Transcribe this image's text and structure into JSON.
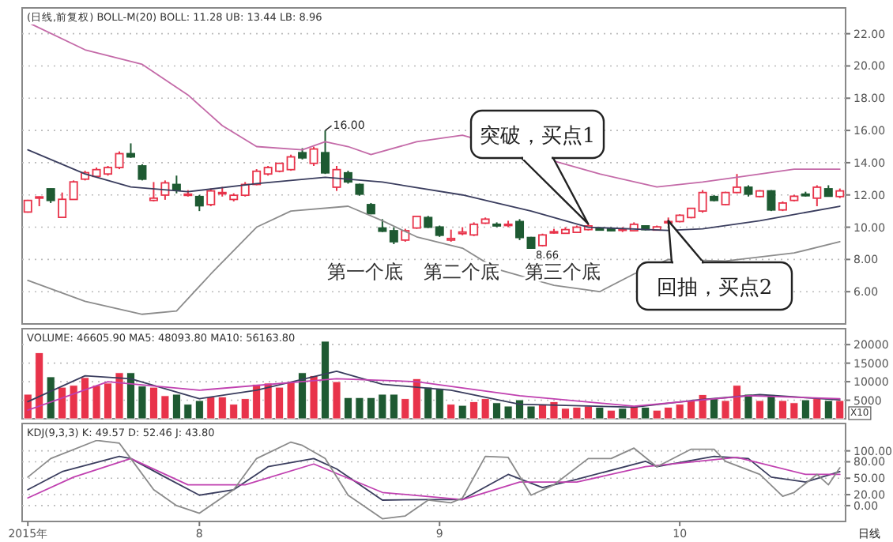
{
  "chart_data": [
    {
      "type": "candlestick",
      "title": "(日线,前复权) BOLL-M(20) BOLL: 11.28 UB: 13.44 LB: 8.96",
      "categories": [
        null,
        null,
        null,
        null,
        null,
        null,
        null,
        null,
        null,
        null,
        null,
        null,
        null,
        null,
        null,
        null,
        null,
        null,
        null,
        null,
        null,
        null,
        null,
        null,
        null,
        null,
        null,
        null,
        null,
        null,
        null,
        null,
        null,
        null,
        null,
        null,
        null,
        null,
        null,
        null,
        null,
        null,
        null,
        null,
        null,
        null,
        null,
        null,
        null,
        null,
        null,
        null,
        null,
        null,
        null,
        null,
        null,
        null,
        null,
        null,
        null,
        null,
        null,
        null,
        null,
        null,
        null,
        null,
        null,
        null,
        null,
        null
      ],
      "ohlc": [
        [
          10.94,
          11.7,
          10.9,
          11.66
        ],
        [
          11.88,
          11.9,
          11.3,
          11.88
        ],
        [
          12.38,
          12.4,
          11.5,
          11.66
        ],
        [
          10.61,
          12.15,
          10.6,
          11.73
        ],
        [
          11.72,
          12.9,
          11.7,
          12.81
        ],
        [
          12.98,
          13.5,
          12.9,
          13.38
        ],
        [
          13.15,
          13.7,
          13.1,
          13.57
        ],
        [
          13.3,
          13.8,
          13.2,
          13.7
        ],
        [
          13.7,
          14.7,
          13.6,
          14.56
        ],
        [
          14.56,
          15.2,
          14.3,
          14.36
        ],
        [
          13.8,
          13.9,
          12.9,
          12.98
        ],
        [
          11.66,
          12.8,
          11.6,
          11.8
        ],
        [
          11.99,
          12.9,
          11.7,
          12.75
        ],
        [
          12.65,
          13.2,
          12.1,
          12.32
        ],
        [
          12.05,
          12.3,
          11.9,
          12.05
        ],
        [
          11.9,
          12.0,
          11.0,
          11.33
        ],
        [
          11.4,
          12.4,
          11.3,
          12.25
        ],
        [
          12.1,
          12.5,
          11.9,
          12.15
        ],
        [
          11.72,
          12.1,
          11.6,
          11.98
        ],
        [
          11.98,
          12.8,
          11.9,
          12.65
        ],
        [
          12.65,
          13.6,
          12.6,
          13.47
        ],
        [
          13.3,
          13.8,
          13.2,
          13.7
        ],
        [
          13.47,
          14.0,
          13.4,
          13.96
        ],
        [
          13.57,
          14.5,
          13.5,
          14.36
        ],
        [
          14.62,
          14.9,
          14.2,
          14.3
        ],
        [
          13.96,
          15.0,
          13.8,
          14.85
        ],
        [
          14.62,
          16.0,
          13.3,
          13.37
        ],
        [
          12.48,
          13.8,
          12.25,
          13.57
        ],
        [
          13.37,
          13.5,
          12.7,
          12.81
        ],
        [
          12.65,
          12.7,
          11.95,
          12.05
        ],
        [
          11.4,
          11.5,
          10.8,
          10.84
        ],
        [
          9.95,
          10.5,
          9.7,
          9.75
        ],
        [
          9.78,
          10.0,
          8.95,
          9.1
        ],
        [
          9.2,
          9.9,
          9.1,
          9.78
        ],
        [
          9.95,
          10.7,
          9.9,
          10.67
        ],
        [
          10.6,
          10.7,
          9.95,
          10.0
        ],
        [
          10.01,
          10.1,
          9.4,
          9.5
        ],
        [
          9.2,
          9.85,
          9.1,
          9.3
        ],
        [
          9.6,
          10.0,
          9.5,
          9.7
        ],
        [
          9.52,
          10.3,
          9.45,
          10.18
        ],
        [
          10.25,
          10.6,
          10.2,
          10.5
        ],
        [
          10.18,
          10.3,
          10.0,
          10.08
        ],
        [
          10.18,
          10.4,
          10.0,
          10.18
        ],
        [
          10.35,
          10.5,
          9.2,
          9.36
        ],
        [
          9.36,
          9.4,
          8.66,
          8.7
        ],
        [
          8.86,
          9.6,
          8.8,
          9.52
        ],
        [
          9.68,
          9.9,
          9.6,
          9.72
        ],
        [
          9.62,
          10.0,
          9.6,
          9.85
        ],
        [
          9.68,
          10.1,
          9.65,
          10.0
        ],
        [
          9.85,
          10.2,
          9.8,
          10.08
        ],
        [
          9.95,
          10.0,
          9.8,
          9.82
        ],
        [
          9.9,
          10.0,
          9.75,
          9.78
        ],
        [
          9.85,
          10.0,
          9.7,
          9.88
        ],
        [
          9.78,
          10.3,
          9.75,
          10.18
        ],
        [
          10.08,
          10.1,
          9.8,
          9.85
        ],
        [
          9.82,
          10.1,
          9.8,
          10.02
        ],
        [
          10.3,
          10.6,
          10.2,
          10.35
        ],
        [
          10.35,
          10.8,
          10.3,
          10.74
        ],
        [
          10.6,
          11.2,
          10.55,
          11.17
        ],
        [
          11.0,
          12.3,
          10.9,
          12.15
        ],
        [
          11.9,
          12.0,
          11.6,
          11.66
        ],
        [
          11.4,
          12.2,
          11.35,
          12.15
        ],
        [
          12.15,
          13.3,
          12.1,
          12.48
        ],
        [
          12.48,
          12.6,
          11.9,
          12.05
        ],
        [
          11.9,
          12.3,
          11.85,
          12.25
        ],
        [
          12.25,
          12.3,
          11.0,
          11.07
        ],
        [
          11.07,
          11.6,
          11.0,
          11.5
        ],
        [
          11.66,
          12.0,
          11.6,
          11.92
        ],
        [
          12.05,
          12.2,
          11.9,
          11.95
        ],
        [
          11.8,
          12.6,
          11.3,
          12.48
        ],
        [
          12.38,
          12.6,
          11.9,
          11.92
        ],
        [
          11.9,
          12.4,
          11.8,
          12.25
        ]
      ],
      "series": [
        {
          "type": "line",
          "color": "#c46aa8",
          "values": [
            22.7,
            null,
            null,
            null,
            null,
            21.0,
            null,
            null,
            null,
            null,
            20.1,
            null,
            null,
            null,
            18.2,
            null,
            null,
            16.3,
            null,
            null,
            15.0,
            null,
            null,
            null,
            14.8,
            null,
            15.3,
            null,
            15.0,
            null,
            14.5,
            null,
            null,
            null,
            15.3,
            null,
            null,
            null,
            15.7,
            null,
            null,
            null,
            null,
            null,
            null,
            null,
            null,
            null,
            null,
            null,
            13.3,
            null,
            null,
            null,
            null,
            12.5,
            null,
            null,
            null,
            12.8,
            null,
            null,
            13.1,
            null,
            null,
            null,
            null,
            13.6,
            null,
            null,
            null,
            13.6
          ]
        },
        {
          "type": "line",
          "color": "#3a3d5e",
          "values": [
            14.8,
            null,
            null,
            null,
            null,
            13.3,
            null,
            null,
            null,
            12.5,
            null,
            null,
            null,
            null,
            12.2,
            null,
            null,
            null,
            null,
            null,
            12.7,
            null,
            null,
            null,
            null,
            null,
            13.1,
            null,
            null,
            null,
            null,
            12.8,
            null,
            null,
            null,
            null,
            null,
            null,
            12.0,
            null,
            null,
            null,
            null,
            null,
            11.0,
            null,
            null,
            null,
            null,
            10.0,
            null,
            null,
            null,
            null,
            null,
            null,
            9.8,
            null,
            null,
            9.9,
            null,
            null,
            null,
            null,
            10.4,
            null,
            null,
            null,
            null,
            null,
            null,
            11.3
          ]
        },
        {
          "type": "line",
          "color": "#8c8c8c",
          "values": [
            6.7,
            null,
            null,
            null,
            null,
            5.4,
            null,
            null,
            null,
            null,
            4.6,
            null,
            null,
            4.8,
            null,
            null,
            7.1,
            null,
            null,
            null,
            10.0,
            null,
            null,
            11.0,
            null,
            null,
            null,
            null,
            11.3,
            null,
            null,
            10.4,
            null,
            null,
            9.4,
            null,
            null,
            null,
            8.7,
            null,
            null,
            7.4,
            null,
            null,
            null,
            null,
            6.4,
            null,
            null,
            null,
            6.0,
            null,
            null,
            7.1,
            null,
            null,
            8.0,
            null,
            null,
            null,
            null,
            7.9,
            null,
            null,
            null,
            null,
            null,
            8.4,
            null,
            null,
            null,
            9.1
          ]
        }
      ],
      "ylim": [
        4,
        23.6
      ],
      "yticks": [
        {
          "value": 6,
          "label": "6.00"
        },
        {
          "value": 8,
          "label": "8.00"
        },
        {
          "value": 10,
          "label": "10.00"
        },
        {
          "value": 12,
          "label": "12.00"
        },
        {
          "value": 14,
          "label": "14.00"
        },
        {
          "value": 16,
          "label": "16.00"
        },
        {
          "value": 18,
          "label": "18.00"
        },
        {
          "value": 20,
          "label": "20.00"
        },
        {
          "value": 22,
          "label": "22.00"
        }
      ],
      "grid": "y",
      "tick_labels": "y",
      "annotations": [
        "16.00",
        "8.66",
        "第一个底",
        "第二个底",
        "第三个底",
        "突破，买点1",
        "回抽，买点2"
      ]
    },
    {
      "type": "bar",
      "title": "VOLUME: 46605.90 MA5: 48093.80 MA10: 56163.80",
      "categories": [
        null,
        null,
        null,
        null,
        null,
        null,
        null,
        null,
        null,
        null,
        null,
        null,
        null,
        null,
        null,
        null,
        null,
        null,
        null,
        null,
        null,
        null,
        null,
        null,
        null,
        null,
        null,
        null,
        null,
        null,
        null,
        null,
        null,
        null,
        null,
        null,
        null,
        null,
        null,
        null,
        null,
        null,
        null,
        null,
        null,
        null,
        null,
        null,
        null,
        null,
        null,
        null,
        null,
        null,
        null,
        null,
        null,
        null,
        null,
        null,
        null,
        null,
        null,
        null,
        null,
        null,
        null,
        null,
        null,
        null,
        null,
        null
      ],
      "values": [
        6600,
        17800,
        11300,
        8500,
        9000,
        11100,
        9000,
        9600,
        12400,
        12400,
        8800,
        8500,
        6200,
        6600,
        3900,
        4900,
        5900,
        5900,
        3900,
        5400,
        9300,
        9600,
        8500,
        10000,
        12400,
        11600,
        20900,
        10000,
        5700,
        5700,
        5700,
        6600,
        6600,
        5400,
        10800,
        8500,
        8200,
        3900,
        3600,
        4600,
        5400,
        4300,
        3400,
        5100,
        3400,
        3900,
        4600,
        2800,
        3100,
        3400,
        3100,
        2300,
        2800,
        3400,
        3100,
        2300,
        3100,
        3900,
        4900,
        6500,
        5400,
        4900,
        9000,
        6600,
        4900,
        6500,
        4900,
        4300,
        5100,
        5400,
        4900,
        4900
      ],
      "colors": [
        "#e8334a",
        "#e8334a",
        "#1e5a32",
        "#e8334a",
        "#e8334a",
        "#e8334a",
        "#e8334a",
        "#e8334a",
        "#e8334a",
        "#1e5a32",
        "#1e5a32",
        "#e8334a",
        "#e8334a",
        "#1e5a32",
        "#1e5a32",
        "#1e5a32",
        "#e8334a",
        "#e8334a",
        "#e8334a",
        "#e8334a",
        "#e8334a",
        "#e8334a",
        "#e8334a",
        "#e8334a",
        "#1e5a32",
        "#e8334a",
        "#1e5a32",
        "#e8334a",
        "#1e5a32",
        "#1e5a32",
        "#1e5a32",
        "#1e5a32",
        "#1e5a32",
        "#e8334a",
        "#e8334a",
        "#1e5a32",
        "#1e5a32",
        "#e8334a",
        "#1e5a32",
        "#e8334a",
        "#e8334a",
        "#1e5a32",
        "#1e5a32",
        "#1e5a32",
        "#1e5a32",
        "#e8334a",
        "#e8334a",
        "#e8334a",
        "#e8334a",
        "#e8334a",
        "#1e5a32",
        "#e8334a",
        "#1e5a32",
        "#e8334a",
        "#1e5a32",
        "#e8334a",
        "#e8334a",
        "#e8334a",
        "#e8334a",
        "#e8334a",
        "#1e5a32",
        "#e8334a",
        "#e8334a",
        "#1e5a32",
        "#e8334a",
        "#1e5a32",
        "#e8334a",
        "#e8334a",
        "#1e5a32",
        "#e8334a",
        "#1e5a32",
        "#e8334a"
      ],
      "series": [
        {
          "type": "line",
          "color": "#3a3d5e",
          "values": [
            4600,
            null,
            null,
            null,
            null,
            11600,
            null,
            null,
            null,
            10800,
            null,
            null,
            null,
            null,
            null,
            5400,
            null,
            null,
            null,
            null,
            7700,
            null,
            null,
            null,
            null,
            null,
            null,
            12800,
            null,
            null,
            null,
            9300,
            null,
            null,
            null,
            null,
            null,
            7700,
            null,
            null,
            null,
            null,
            null,
            3900,
            null,
            null,
            null,
            null,
            null,
            null,
            null,
            null,
            null,
            3100,
            null,
            null,
            null,
            null,
            4900,
            null,
            null,
            null,
            null,
            null,
            6500,
            null,
            null,
            null,
            null,
            null,
            null,
            5100
          ]
        },
        {
          "type": "line",
          "color": "#c040b0",
          "values": [
            2300,
            null,
            null,
            null,
            null,
            null,
            null,
            10000,
            null,
            null,
            null,
            null,
            null,
            null,
            null,
            7700,
            null,
            null,
            null,
            null,
            null,
            null,
            null,
            null,
            null,
            null,
            null,
            10800,
            null,
            null,
            null,
            null,
            null,
            null,
            10000,
            null,
            null,
            null,
            null,
            null,
            null,
            null,
            null,
            6200,
            null,
            null,
            null,
            null,
            null,
            null,
            null,
            null,
            null,
            3400,
            null,
            null,
            null,
            null,
            null,
            null,
            null,
            null,
            null,
            6200,
            null,
            null,
            null,
            null,
            null,
            null,
            null,
            5400
          ]
        }
      ],
      "ylim": [
        0,
        24300
      ],
      "yticks": [
        5000,
        10000,
        15000,
        20000
      ],
      "grid": "y",
      "tick_labels": "y",
      "annotations": [
        "X10"
      ]
    },
    {
      "type": "line",
      "title": "KDJ(9,3,3) K: 49.57 D: 52.46 J: 43.80",
      "categories": [
        "2015年",
        null,
        null,
        null,
        null,
        null,
        null,
        null,
        null,
        null,
        null,
        null,
        null,
        null,
        null,
        "8",
        null,
        null,
        null,
        null,
        null,
        null,
        null,
        null,
        null,
        null,
        null,
        null,
        null,
        null,
        null,
        null,
        null,
        null,
        null,
        null,
        "9",
        null,
        null,
        null,
        null,
        null,
        null,
        null,
        null,
        null,
        null,
        null,
        null,
        null,
        null,
        null,
        null,
        null,
        null,
        null,
        null,
        "10",
        null,
        null,
        null,
        null,
        null,
        null,
        null,
        null,
        null,
        null,
        null,
        null,
        null,
        null
      ],
      "series": [
        {
          "color": "#3a3d5e",
          "values": [
            29,
            null,
            null,
            62,
            null,
            null,
            null,
            null,
            90,
            86,
            null,
            null,
            52,
            null,
            null,
            19,
            null,
            null,
            29,
            null,
            null,
            71,
            null,
            null,
            null,
            86,
            null,
            67,
            null,
            null,
            null,
            10,
            null,
            null,
            null,
            11,
            null,
            null,
            11,
            null,
            null,
            null,
            57,
            null,
            null,
            33,
            null,
            null,
            48,
            null,
            null,
            null,
            null,
            null,
            81,
            71,
            null,
            null,
            null,
            null,
            90,
            null,
            null,
            86,
            null,
            52,
            null,
            null,
            43,
            null,
            null,
            62
          ]
        },
        {
          "color": "#c040b0",
          "values": [
            14,
            null,
            null,
            null,
            52,
            null,
            null,
            null,
            null,
            86,
            null,
            null,
            null,
            null,
            38,
            null,
            null,
            null,
            null,
            38,
            null,
            null,
            null,
            null,
            null,
            76,
            null,
            null,
            null,
            null,
            null,
            24,
            null,
            null,
            null,
            null,
            null,
            null,
            11,
            null,
            null,
            null,
            null,
            43,
            null,
            null,
            null,
            null,
            43,
            null,
            null,
            null,
            null,
            null,
            71,
            null,
            null,
            null,
            null,
            null,
            null,
            null,
            88,
            null,
            null,
            null,
            null,
            null,
            57,
            null,
            null,
            57
          ]
        },
        {
          "color": "#8a8a8a",
          "values": [
            52,
            null,
            86,
            null,
            null,
            null,
            119,
            null,
            114,
            86,
            null,
            29,
            null,
            0,
            null,
            -14,
            null,
            null,
            29,
            null,
            86,
            null,
            null,
            116,
            110,
            null,
            86,
            null,
            19,
            null,
            null,
            -24,
            null,
            -19,
            null,
            10,
            null,
            5,
            14,
            null,
            90,
            null,
            88,
            null,
            19,
            null,
            38,
            null,
            null,
            86,
            null,
            86,
            null,
            105,
            null,
            71,
            null,
            null,
            103,
            null,
            103,
            81,
            null,
            null,
            57,
            null,
            17,
            24,
            null,
            57,
            38,
            69
          ]
        }
      ],
      "ylim": [
        -29,
        150
      ],
      "yticks": [
        {
          "value": 0,
          "label": "0.00"
        },
        {
          "value": 20,
          "label": "20.00"
        },
        {
          "value": 50,
          "label": "50.00"
        },
        {
          "value": 80,
          "label": "80.00"
        },
        {
          "value": 100,
          "label": "100.00"
        }
      ],
      "grid": "y",
      "annotations": [
        "日线"
      ]
    }
  ]
}
